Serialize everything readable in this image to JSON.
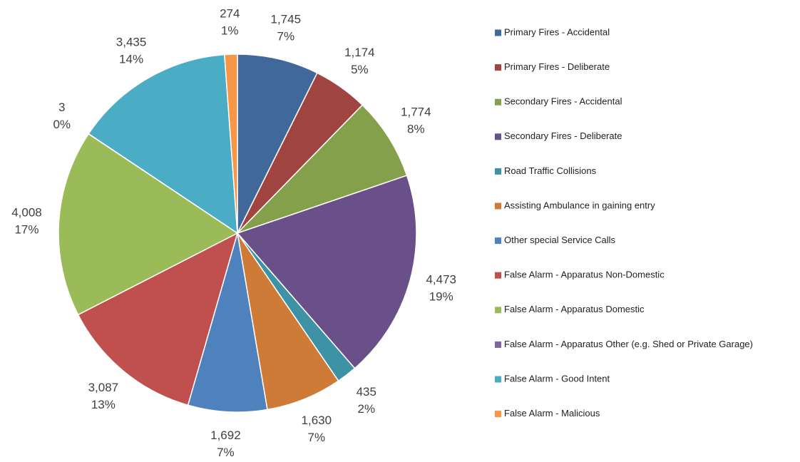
{
  "chart_data": {
    "type": "pie",
    "categories": [
      "Primary Fires - Accidental",
      "Primary Fires - Deliberate",
      "Secondary Fires - Accidental",
      "Secondary Fires - Deliberate",
      "Road Traffic Collisions",
      "Assisting Ambulance in gaining entry",
      "Other special Service Calls",
      "False Alarm - Apparatus Non-Domestic",
      "False Alarm - Apparatus Domestic",
      "False Alarm - Apparatus Other (e.g. Shed or Private Garage)",
      "False Alarm - Good Intent",
      "False Alarm - Malicious"
    ],
    "values": [
      1745,
      1174,
      1774,
      4473,
      435,
      1630,
      1692,
      3087,
      4008,
      3,
      3435,
      274
    ],
    "value_labels": [
      "1,745",
      "1,174",
      "1,774",
      "4,473",
      "435",
      "1,630",
      "1,692",
      "3,087",
      "4,008",
      "3",
      "3,435",
      "274"
    ],
    "percentages": [
      7,
      5,
      8,
      19,
      2,
      7,
      7,
      13,
      17,
      0,
      14,
      1
    ],
    "percentage_labels": [
      "7%",
      "5%",
      "8%",
      "19%",
      "2%",
      "7%",
      "7%",
      "13%",
      "17%",
      "0%",
      "14%",
      "1%"
    ],
    "colors": [
      "#41689a",
      "#a04442",
      "#84a04a",
      "#6a5088",
      "#3d93a5",
      "#cf7b38",
      "#4f81bd",
      "#c0504d",
      "#9bbb59",
      "#8064a2",
      "#4bacc6",
      "#f79646"
    ],
    "legend": "right"
  }
}
